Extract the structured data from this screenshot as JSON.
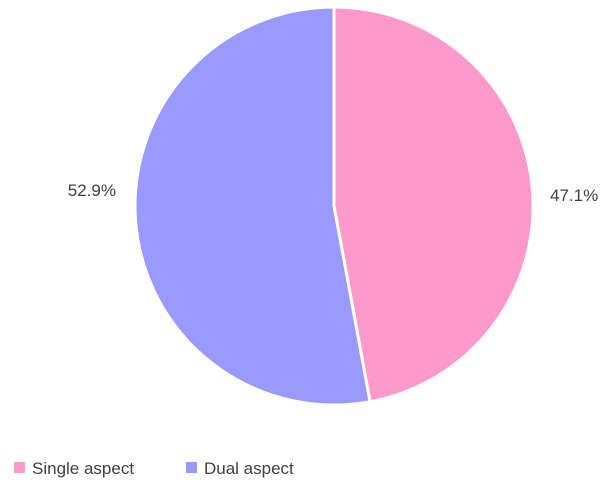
{
  "chart_data": {
    "type": "pie",
    "title": "",
    "slices": [
      {
        "label": "Single aspect",
        "value": 47.1,
        "display": "47.1%",
        "color": "#ff99cc"
      },
      {
        "label": "Dual aspect",
        "value": 52.9,
        "display": "52.9%",
        "color": "#9999ff"
      }
    ],
    "start_angle_deg": 0,
    "direction": "clockwise",
    "legend_position": "bottom-left",
    "slice_separator_color": "#ffffff"
  }
}
